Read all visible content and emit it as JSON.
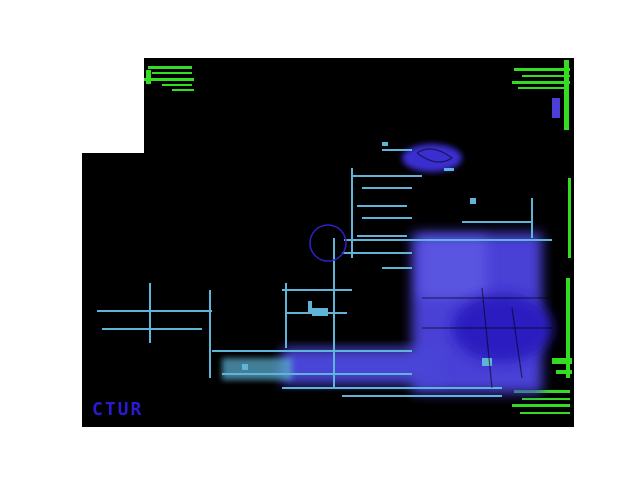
{
  "image": {
    "background_color": "#000000",
    "page_color": "#ffffff",
    "palette": {
      "cyan_edges": "#5fb4d8",
      "blue_glow": "#4a3fd6",
      "blue_core": "#3020c8",
      "green_edges": "#33dd22",
      "white_patch": "#ffffff",
      "blue_text": "#2a1ad0"
    },
    "corner_text": "CTUR"
  }
}
